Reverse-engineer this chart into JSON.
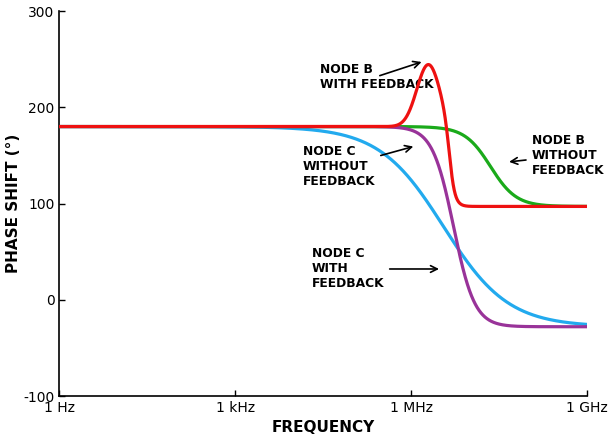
{
  "xlabel": "FREQUENCY",
  "ylabel": "PHASE SHIFT (°)",
  "xlim_log": [
    0,
    9
  ],
  "ylim": [
    -100,
    300
  ],
  "yticks": [
    -100,
    0,
    100,
    200,
    300
  ],
  "xtick_labels": [
    "1 Hz",
    "1 kHz",
    "1 MHz",
    "1 GHz"
  ],
  "xtick_positions": [
    0,
    3,
    6,
    9
  ],
  "bg_color": "#ffffff",
  "colors": {
    "node_b_with_feedback": "#ee1111",
    "node_b_without_feedback": "#1aaa1a",
    "node_c_without_feedback": "#22aaee",
    "node_c_with_feedback": "#993399"
  },
  "lw": 2.3
}
